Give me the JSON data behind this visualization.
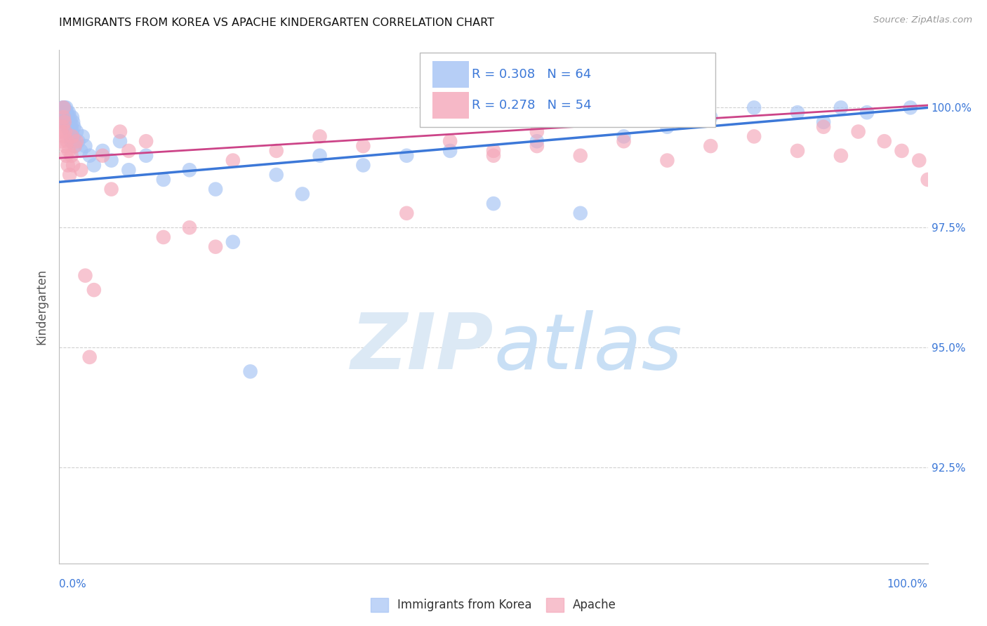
{
  "title": "IMMIGRANTS FROM KOREA VS APACHE KINDERGARTEN CORRELATION CHART",
  "source": "Source: ZipAtlas.com",
  "ylabel": "Kindergarten",
  "legend_blue_r": "R = 0.308",
  "legend_blue_n": "N = 64",
  "legend_pink_r": "R = 0.278",
  "legend_pink_n": "N = 54",
  "legend_label_blue": "Immigrants from Korea",
  "legend_label_pink": "Apache",
  "ytick_values": [
    92.5,
    95.0,
    97.5,
    100.0
  ],
  "xlim": [
    0.0,
    100.0
  ],
  "ylim": [
    90.5,
    101.2
  ],
  "blue_color": "#a4c2f4",
  "pink_color": "#f4a7b9",
  "line_blue_color": "#3c78d8",
  "line_pink_color": "#cc4488",
  "text_blue_color": "#3c78d8",
  "grid_color": "#d0d0d0",
  "watermark_zip": "ZIP",
  "watermark_atlas": "atlas",
  "watermark_color": "#dce9f5",
  "blue_x": [
    0.3,
    0.4,
    0.5,
    0.5,
    0.6,
    0.6,
    0.7,
    0.7,
    0.8,
    0.8,
    0.9,
    0.9,
    1.0,
    1.0,
    1.1,
    1.1,
    1.2,
    1.2,
    1.3,
    1.3,
    1.4,
    1.4,
    1.5,
    1.5,
    1.6,
    1.6,
    1.7,
    1.7,
    1.8,
    2.0,
    2.2,
    2.5,
    2.7,
    3.0,
    3.5,
    4.0,
    5.0,
    6.0,
    7.0,
    8.0,
    10.0,
    12.0,
    15.0,
    18.0,
    20.0,
    22.0,
    25.0,
    28.0,
    30.0,
    35.0,
    40.0,
    45.0,
    50.0,
    55.0,
    60.0,
    65.0,
    70.0,
    75.0,
    80.0,
    85.0,
    88.0,
    90.0,
    93.0,
    98.0
  ],
  "blue_y": [
    99.8,
    100.0,
    99.9,
    100.0,
    99.8,
    100.0,
    99.7,
    99.9,
    99.8,
    100.0,
    99.6,
    99.9,
    99.8,
    99.7,
    99.9,
    99.6,
    99.8,
    99.5,
    99.4,
    99.7,
    99.3,
    99.6,
    99.5,
    99.8,
    99.4,
    99.7,
    99.6,
    99.3,
    99.2,
    99.5,
    99.3,
    99.1,
    99.4,
    99.2,
    99.0,
    98.8,
    99.1,
    98.9,
    99.3,
    98.7,
    99.0,
    98.5,
    98.7,
    98.3,
    97.2,
    94.5,
    98.6,
    98.2,
    99.0,
    98.8,
    99.0,
    99.1,
    98.0,
    99.3,
    97.8,
    99.4,
    99.6,
    99.8,
    100.0,
    99.9,
    99.7,
    100.0,
    99.9,
    100.0
  ],
  "pink_x": [
    0.2,
    0.3,
    0.4,
    0.5,
    0.5,
    0.6,
    0.6,
    0.7,
    0.7,
    0.8,
    0.9,
    1.0,
    1.1,
    1.2,
    1.4,
    1.5,
    1.6,
    1.8,
    2.0,
    2.5,
    3.0,
    3.5,
    4.0,
    5.0,
    6.0,
    7.0,
    8.0,
    10.0,
    12.0,
    15.0,
    18.0,
    20.0,
    25.0,
    30.0,
    35.0,
    40.0,
    45.0,
    50.0,
    55.0,
    60.0,
    65.0,
    70.0,
    75.0,
    80.0,
    85.0,
    88.0,
    90.0,
    92.0,
    95.0,
    97.0,
    99.0,
    100.0,
    50.0,
    55.0
  ],
  "pink_y": [
    99.5,
    99.3,
    99.6,
    99.8,
    100.0,
    99.4,
    99.7,
    99.2,
    99.5,
    99.0,
    99.3,
    98.8,
    99.1,
    98.6,
    99.0,
    99.4,
    98.8,
    99.2,
    99.3,
    98.7,
    96.5,
    94.8,
    96.2,
    99.0,
    98.3,
    99.5,
    99.1,
    99.3,
    97.3,
    97.5,
    97.1,
    98.9,
    99.1,
    99.4,
    99.2,
    97.8,
    99.3,
    99.1,
    99.5,
    99.0,
    99.3,
    98.9,
    99.2,
    99.4,
    99.1,
    99.6,
    99.0,
    99.5,
    99.3,
    99.1,
    98.9,
    98.5,
    99.0,
    99.2
  ],
  "blue_line_x0": 0.0,
  "blue_line_y0": 98.45,
  "blue_line_x1": 100.0,
  "blue_line_y1": 100.0,
  "pink_line_x0": 0.0,
  "pink_line_y0": 98.95,
  "pink_line_x1": 100.0,
  "pink_line_y1": 100.05
}
